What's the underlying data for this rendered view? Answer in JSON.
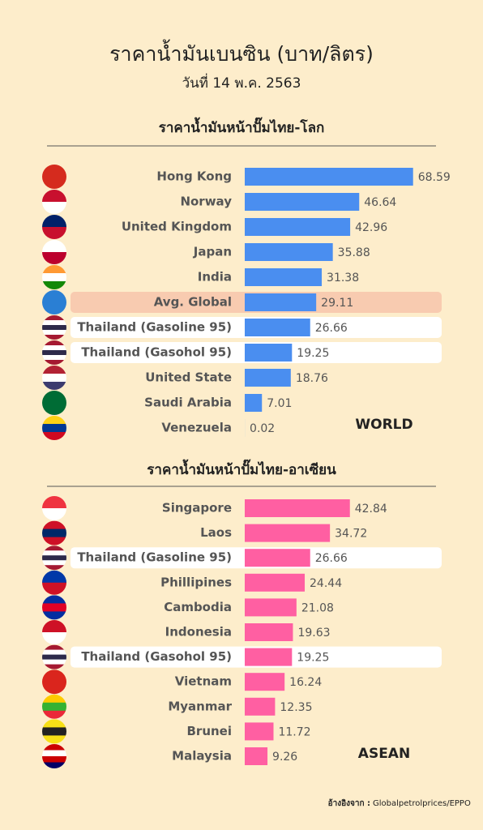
{
  "title": "ราคาน้ำมันเบนซิน (บาท/ลิตร)",
  "subtitle": "วันที่ 14 พ.ค. 2563",
  "source_label": "อ้างอิงจาก :",
  "source": "Globalpetrolprices/EPPO",
  "chart_data": [
    {
      "type": "bar",
      "orientation": "horizontal",
      "title": "ราคาน้ำมันหน้าปั๊มไทย-โลก",
      "corner_label": "WORLD",
      "categories": [
        "Hong Kong",
        "Norway",
        "United Kingdom",
        "Japan",
        "India",
        "Avg. Global",
        "Thailand (Gasoline 95)",
        "Thailand (Gasohol 95)",
        "United State",
        "Saudi Arabia",
        "Venezuela"
      ],
      "values": [
        68.59,
        46.64,
        42.96,
        35.88,
        31.38,
        29.11,
        26.66,
        19.25,
        18.76,
        7.01,
        0.02
      ],
      "color": "#4a8ef0",
      "row_highlight": [
        null,
        null,
        null,
        null,
        null,
        "#f8cbb0",
        "#ffffff",
        "#ffffff",
        null,
        null,
        null
      ],
      "xlim": [
        0,
        70
      ]
    },
    {
      "type": "bar",
      "orientation": "horizontal",
      "title": "ราคาน้ำมันหน้าปั๊มไทย-อาเซียน",
      "corner_label": "ASEAN",
      "categories": [
        "Singapore",
        "Laos",
        "Thailand (Gasoline 95)",
        "Phillipines",
        "Cambodia",
        "Indonesia",
        "Thailand (Gasohol 95)",
        "Vietnam",
        "Myanmar",
        "Brunei",
        "Malaysia"
      ],
      "values": [
        42.84,
        34.72,
        26.66,
        24.44,
        21.08,
        19.63,
        19.25,
        16.24,
        12.35,
        11.72,
        9.26
      ],
      "color": "#ff5fa2",
      "row_highlight": [
        null,
        null,
        "#ffffff",
        null,
        null,
        null,
        "#ffffff",
        null,
        null,
        null,
        null
      ],
      "xlim": [
        0,
        70
      ]
    }
  ]
}
